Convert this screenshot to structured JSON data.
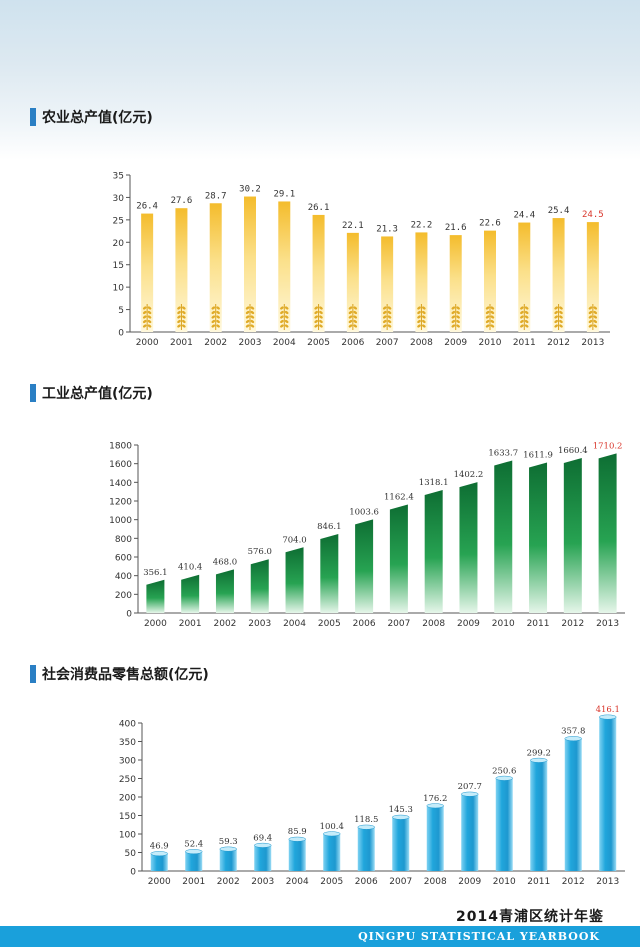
{
  "footer": {
    "title": "2014青浦区统计年鉴",
    "subtitle": "QINGPU STATISTICAL YEARBOOK"
  },
  "colors": {
    "highlight": "#d9362b",
    "agri": "#f5c542",
    "industry": "#138a3e",
    "retail": "#21a6dc",
    "footer_bar": "#1aa0db"
  },
  "chart_data": [
    {
      "type": "bar",
      "title": "农业总产值(亿元)",
      "categories": [
        "2000",
        "2001",
        "2002",
        "2003",
        "2004",
        "2005",
        "2006",
        "2007",
        "2008",
        "2009",
        "2010",
        "2011",
        "2012",
        "2013"
      ],
      "values": [
        26.4,
        27.6,
        28.7,
        30.2,
        29.1,
        26.1,
        22.1,
        21.3,
        22.2,
        21.6,
        22.6,
        24.4,
        25.4,
        24.5
      ],
      "labels": [
        "26.4",
        "27.6",
        "28.7",
        "30.2",
        "29.1",
        "26.1",
        "22.1",
        "21.3",
        "22.2",
        "21.6",
        "22.6",
        "24.4",
        "25.4",
        "24.5"
      ],
      "yticks": [
        "0",
        "5",
        "10",
        "15",
        "20",
        "25",
        "30",
        "35"
      ],
      "ylim": [
        0,
        35
      ],
      "grid": false
    },
    {
      "type": "bar",
      "title": "工业总产值(亿元)",
      "categories": [
        "2000",
        "2001",
        "2002",
        "2003",
        "2004",
        "2005",
        "2006",
        "2007",
        "2008",
        "2009",
        "2010",
        "2011",
        "2012",
        "2013"
      ],
      "values": [
        356.1,
        410.4,
        468.0,
        576.0,
        704.0,
        846.1,
        1003.6,
        1162.4,
        1318.1,
        1402.2,
        1633.7,
        1611.9,
        1660.4,
        1710.2
      ],
      "labels": [
        "356.1",
        "410.4",
        "468.0",
        "576.0",
        "704.0",
        "846.1",
        "1003.6",
        "1162.4",
        "1318.1",
        "1402.2",
        "1633.7",
        "1611.9",
        "1660.4",
        "1710.2"
      ],
      "yticks": [
        "0",
        "200",
        "400",
        "600",
        "800",
        "1000",
        "1200",
        "1400",
        "1600",
        "1800"
      ],
      "ylim": [
        0,
        1800
      ],
      "grid": false
    },
    {
      "type": "bar",
      "title": "社会消费品零售总额(亿元)",
      "categories": [
        "2000",
        "2001",
        "2002",
        "2003",
        "2004",
        "2005",
        "2006",
        "2007",
        "2008",
        "2009",
        "2010",
        "2011",
        "2012",
        "2013"
      ],
      "values": [
        46.9,
        52.4,
        59.3,
        69.4,
        85.9,
        100.4,
        118.5,
        145.3,
        176.2,
        207.7,
        250.6,
        299.2,
        357.8,
        416.1
      ],
      "labels": [
        "46.9",
        "52.4",
        "59.3",
        "69.4",
        "85.9",
        "100.4",
        "118.5",
        "145.3",
        "176.2",
        "207.7",
        "250.6",
        "299.2",
        "357.8",
        "416.1"
      ],
      "yticks": [
        "0",
        "50",
        "100",
        "150",
        "200",
        "250",
        "300",
        "350",
        "400"
      ],
      "ylim": [
        0,
        400
      ],
      "grid": false
    }
  ]
}
